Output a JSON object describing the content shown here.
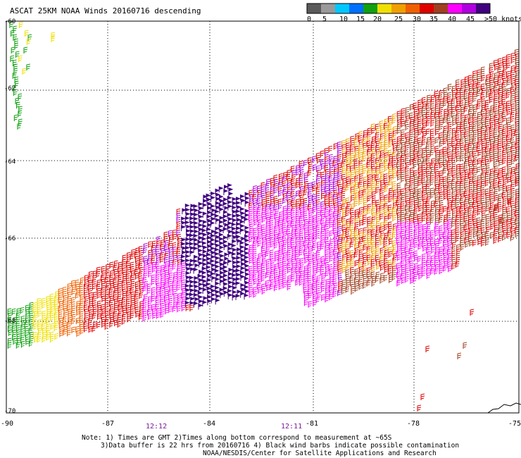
{
  "title": "ASCAT 25KM NOAA Winds 20160716 descending",
  "colorbar": {
    "colors": [
      "#5a5a5a",
      "#9a9a9a",
      "#00c8ff",
      "#0070ff",
      "#10a010",
      "#f0e000",
      "#f0a000",
      "#f06000",
      "#e00000",
      "#a04020",
      "#ff00ff",
      "#b000e0",
      "#400080"
    ],
    "labels": [
      "0",
      "5",
      "10",
      "15",
      "20",
      "25",
      "30",
      "35",
      "40",
      "45",
      ">50 knots"
    ]
  },
  "axes": {
    "lat_ticks": [
      "-60",
      "-62",
      "-64",
      "-66",
      "-68",
      "-70"
    ],
    "lon_ticks": [
      "-90",
      "-87",
      "-84",
      "-81",
      "-78",
      "-75"
    ],
    "times": [
      "12:12",
      "12:11"
    ]
  },
  "notes": {
    "line1": "Note: 1) Times are GMT 2)Times along bottom correspond to measurement at ~65S",
    "line2": "3)Data buffer is 22 hrs from 20160716 4) Black wind barbs indicate possible contamination",
    "line3": "NOAA/NESDIS/Center for Satellite Applications and Research"
  },
  "legend_colors": {
    "c0": "#10a010",
    "c1": "#f0e000",
    "c2": "#f0a000",
    "c3": "#f06000",
    "c4": "#e00000",
    "c5": "#a04020",
    "c6": "#ff00ff",
    "c7": "#b000e0",
    "c8": "#400080"
  }
}
